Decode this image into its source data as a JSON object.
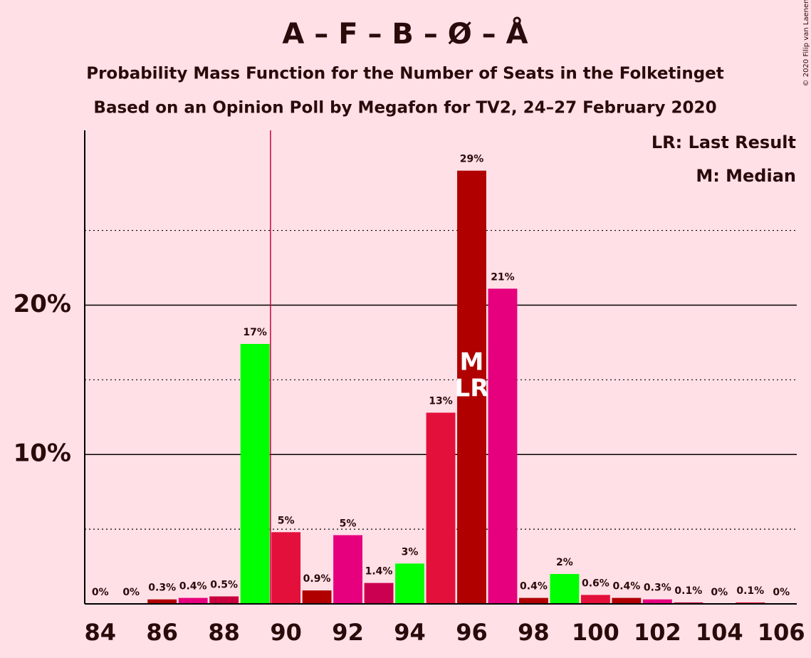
{
  "chart_data": {
    "type": "bar",
    "title": "A – F – B – Ø – Å",
    "subtitle": "Probability Mass Function for the Number of Seats in the Folketinget",
    "subtitle2": "Based on an Opinion Poll by Megafon for TV2, 24–27 February 2020",
    "copyright": "© 2020 Filip van Laenen",
    "legend": [
      "LR: Last Result",
      "M: Median"
    ],
    "x": [
      84,
      85,
      86,
      87,
      88,
      89,
      90,
      91,
      92,
      93,
      94,
      95,
      96,
      97,
      98,
      99,
      100,
      101,
      102,
      103,
      104,
      105,
      106
    ],
    "values": [
      0,
      0,
      0.3,
      0.4,
      0.5,
      17.4,
      4.8,
      0.9,
      4.6,
      1.4,
      2.7,
      12.8,
      29.0,
      21.1,
      0.4,
      2.0,
      0.6,
      0.4,
      0.3,
      0.1,
      0,
      0.1,
      0
    ],
    "value_labels": [
      "0%",
      "0%",
      "0.3%",
      "0.4%",
      "0.5%",
      "17%",
      "5%",
      "0.9%",
      "5%",
      "1.4%",
      "3%",
      "13%",
      "29%",
      "21%",
      "0.4%",
      "2%",
      "0.6%",
      "0.4%",
      "0.3%",
      "0.1%",
      "0%",
      "0.1%",
      "0%"
    ],
    "colors": [
      "#b00000",
      "#e6007e",
      "#b00000",
      "#e6007e",
      "#c8003c",
      "#00ff00",
      "#e4103c",
      "#b00000",
      "#e6007e",
      "#cc0050",
      "#00ff00",
      "#e4103c",
      "#b00000",
      "#e6007e",
      "#b00000",
      "#00ff00",
      "#e4103c",
      "#b00000",
      "#e6007e",
      "#cc0050",
      "#00ff00",
      "#e4103c",
      "#b00000"
    ],
    "xlim": [
      83.5,
      106.5
    ],
    "xticks": [
      84,
      86,
      88,
      90,
      92,
      94,
      96,
      98,
      100,
      102,
      104,
      106
    ],
    "ylim": [
      0,
      31.7
    ],
    "yticks": [
      {
        "value": 10,
        "label": "10%"
      },
      {
        "value": 20,
        "label": "20%"
      }
    ],
    "minor_yticks": [
      5,
      15,
      25
    ],
    "majority_line_x": 89.5,
    "median_label": "M",
    "median_x": 96,
    "last_result_label": "LR",
    "last_result_x": 96
  }
}
